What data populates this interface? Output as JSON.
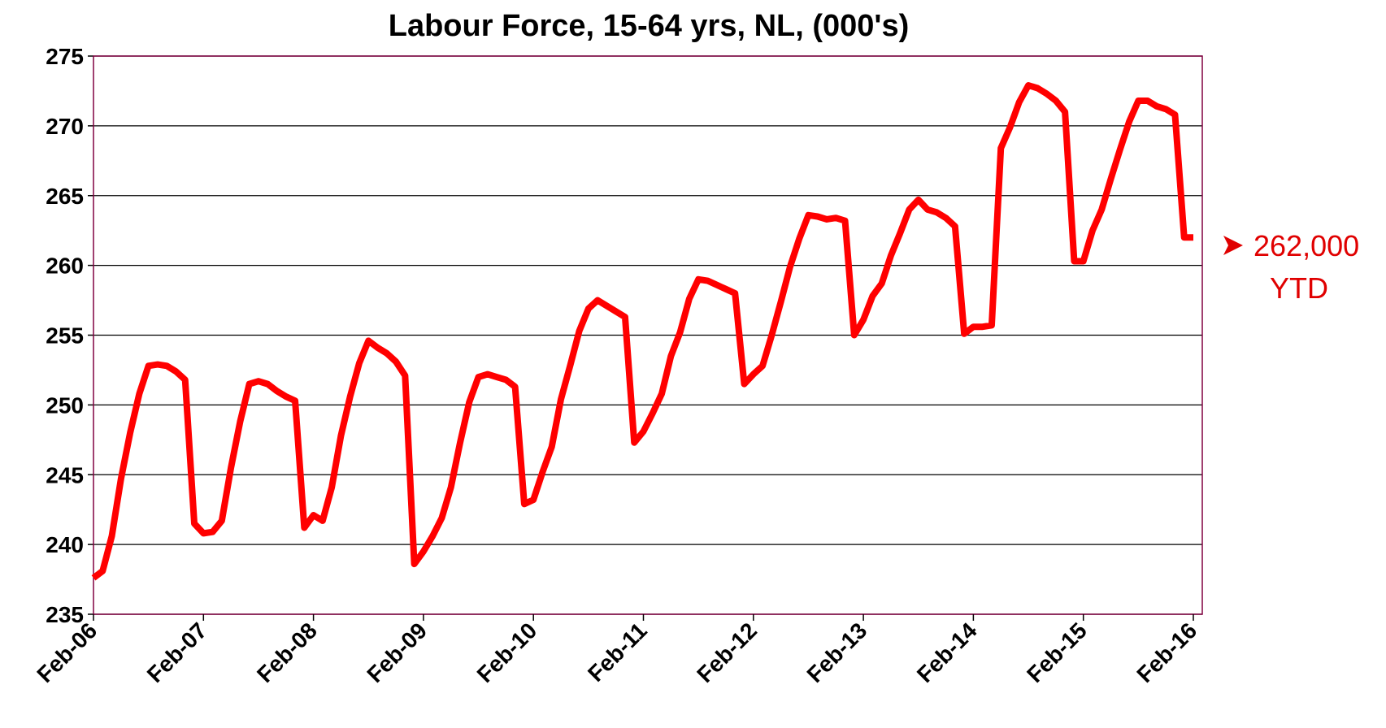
{
  "chart_data": {
    "type": "line",
    "title": "Labour Force, 15-64 yrs, NL, (000's)",
    "categories": [
      "Feb-06",
      null,
      null,
      null,
      null,
      null,
      null,
      null,
      null,
      null,
      null,
      null,
      "Feb-07",
      null,
      null,
      null,
      null,
      null,
      null,
      null,
      null,
      null,
      null,
      null,
      "Feb-08",
      null,
      null,
      null,
      null,
      null,
      null,
      null,
      null,
      null,
      null,
      null,
      "Feb-09",
      null,
      null,
      null,
      null,
      null,
      null,
      null,
      null,
      null,
      null,
      null,
      "Feb-10",
      null,
      null,
      null,
      null,
      null,
      null,
      null,
      null,
      null,
      null,
      null,
      "Feb-11",
      null,
      null,
      null,
      null,
      null,
      null,
      null,
      null,
      null,
      null,
      null,
      "Feb-12",
      null,
      null,
      null,
      null,
      null,
      null,
      null,
      null,
      null,
      null,
      null,
      "Feb-13",
      null,
      null,
      null,
      null,
      null,
      null,
      null,
      null,
      null,
      null,
      null,
      "Feb-14",
      null,
      null,
      null,
      null,
      null,
      null,
      null,
      null,
      null,
      null,
      null,
      "Feb-15",
      null,
      null,
      null,
      null,
      null,
      null,
      null,
      null,
      null,
      null,
      null,
      "Feb-16"
    ],
    "series": [
      {
        "name": "Labour Force",
        "color": "#ff0000",
        "values": [
          237.6,
          238.1,
          240.6,
          244.7,
          248.0,
          250.8,
          252.8,
          252.9,
          252.8,
          252.4,
          251.8,
          241.5,
          240.8,
          240.9,
          241.7,
          245.5,
          248.8,
          251.5,
          251.7,
          251.5,
          251.0,
          250.6,
          250.3,
          241.2,
          242.1,
          241.7,
          244.1,
          247.8,
          250.6,
          253.0,
          254.6,
          254.1,
          253.7,
          253.1,
          252.1,
          238.6,
          239.5,
          240.6,
          241.9,
          244.1,
          247.3,
          250.2,
          252.0,
          252.2,
          252.0,
          251.8,
          251.3,
          242.9,
          243.2,
          245.2,
          247.0,
          250.4,
          252.8,
          255.3,
          256.9,
          257.5,
          257.1,
          256.7,
          256.3,
          247.3,
          248.1,
          249.4,
          250.8,
          253.5,
          255.2,
          257.6,
          259.0,
          258.9,
          258.6,
          258.3,
          258.0,
          251.5,
          252.2,
          252.8,
          255.0,
          257.4,
          259.9,
          261.9,
          263.6,
          263.5,
          263.3,
          263.4,
          263.2,
          255.0,
          256.1,
          257.8,
          258.7,
          260.7,
          262.3,
          264.0,
          264.7,
          264.0,
          263.8,
          263.4,
          262.8,
          255.1,
          255.6,
          255.6,
          255.7,
          268.4,
          269.9,
          271.7,
          272.9,
          272.7,
          272.3,
          271.8,
          271.0,
          260.3,
          260.3,
          262.5,
          264.0,
          266.2,
          268.3,
          270.3,
          271.8,
          271.8,
          271.4,
          271.2,
          270.8,
          262.0,
          262.0
        ]
      }
    ],
    "ylim": [
      235,
      275
    ],
    "yticks": [
      235,
      240,
      245,
      250,
      255,
      260,
      265,
      270,
      275
    ],
    "grid": true,
    "annotation": [
      "262,000",
      "YTD"
    ]
  }
}
